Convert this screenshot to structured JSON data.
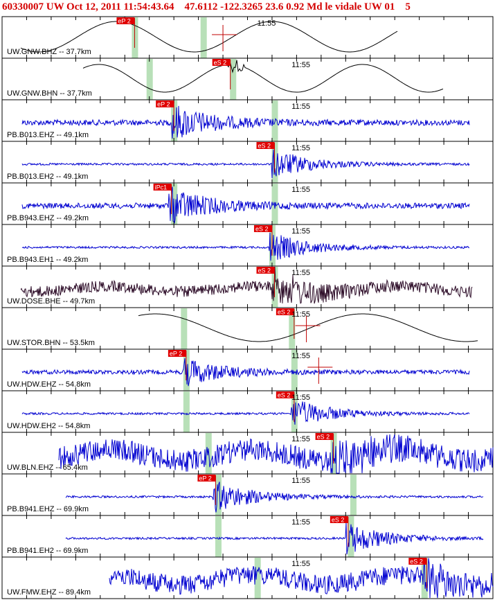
{
  "header": {
    "event_id": "60330007",
    "network": "UW",
    "datetime": "Oct 12, 2011 11:54:43.64",
    "lat": "47.6112",
    "lon": "-122.3265",
    "depth": "23.6",
    "magnitude": "0.92",
    "mag_type": "Md",
    "analyst": "le vidale",
    "source": "UW 01",
    "extra": "5",
    "text": "60330007 UW Oct 12, 2011 11:54:43.64    47.6112 -122.3265 23.6 0.92 Md le vidale UW 01    5"
  },
  "colors": {
    "header_text": "#d40000",
    "pick_box": "#e00000",
    "pick_text": "#ffffff",
    "trace_blue": "#0000d0",
    "trace_black": "#000000",
    "trace_darkpurple": "#2b0a26",
    "window_green": "#b8e0b8",
    "pick_line": "#c00000"
  },
  "time_label": "11:55",
  "traces": [
    {
      "label": "UW.GNW.BHZ -- 37.7km",
      "type": "sine_black",
      "pick": "eP 2",
      "pick_pos": 0.27,
      "green": [
        0.27,
        0.41
      ],
      "label_time": "11:55"
    },
    {
      "label": "UW.GNW.BHN -- 37.7km",
      "type": "sine_black2",
      "pick": "eS 2",
      "pick_pos": 0.465,
      "green": [
        0.3,
        0.47
      ],
      "label_time": "11:55"
    },
    {
      "label": "PB.B013.EHZ -- 49.1km",
      "type": "noise_blue",
      "pick": "eP 2",
      "pick_pos": 0.35,
      "green": [
        0.35,
        0.555
      ],
      "label_time": "11:55"
    },
    {
      "label": "PB.B013.EH2 -- 49.1km",
      "type": "noise_blue_quiet",
      "pick": "eS 2",
      "pick_pos": 0.555,
      "green": [
        0.555
      ],
      "label_time": "11:55"
    },
    {
      "label": "PB.B943.EHZ -- 49.2km",
      "type": "noise_blue",
      "pick": "iPc1",
      "pick_pos": 0.345,
      "green": [
        0.35,
        0.555
      ],
      "label_time": "11:55"
    },
    {
      "label": "PB.B943.EH1 -- 49.2km",
      "type": "noise_blue_quiet",
      "pick": "eS 2",
      "pick_pos": 0.55,
      "green": [
        0.55
      ],
      "label_time": "11:55"
    },
    {
      "label": "UW.DOSE.BHE -- 49.7km",
      "type": "noise_purple",
      "pick": "eS 2",
      "pick_pos": 0.555,
      "green": [
        0.555
      ],
      "label_time": "11:55"
    },
    {
      "label": "UW.STOR.BHN -- 53.5km",
      "type": "sine_black3",
      "pick": "eS 2",
      "pick_pos": 0.595,
      "green": [
        0.37,
        0.59
      ],
      "label_time": "11:55"
    },
    {
      "label": "UW.HDW.EHZ -- 54.8km",
      "type": "noise_blue_hdw",
      "pick": "eP 2",
      "pick_pos": 0.375,
      "green": [
        0.375,
        0.595
      ],
      "label_time": "11:55"
    },
    {
      "label": "UW.HDW.EH2 -- 54.8km",
      "type": "noise_blue_quiet",
      "pick": "eS 2",
      "pick_pos": 0.595,
      "green": [
        0.375,
        0.595
      ],
      "label_time": "11:55"
    },
    {
      "label": "UW.BLN.EHZ -- 65.4km",
      "type": "noise_blue_heavy",
      "pick": "eS 2",
      "pick_pos": 0.675,
      "green": [
        0.42,
        0.675
      ],
      "label_time": "11:55"
    },
    {
      "label": "PB.B941.EHZ -- 69.9km",
      "type": "noise_blue_quiet2",
      "pick": "eP 2",
      "pick_pos": 0.435,
      "green": [
        0.44,
        0.715
      ],
      "label_time": "11:55"
    },
    {
      "label": "PB.B941.EH2 -- 69.9km",
      "type": "noise_blue_quiet2",
      "pick": "eS 2",
      "pick_pos": 0.705,
      "green": [
        0.44,
        0.71
      ],
      "label_time": "11:55"
    },
    {
      "label": "UW.FMW.EHZ -- 89.4km",
      "type": "noise_blue_heavy2",
      "pick": "eS 2",
      "pick_pos": 0.865,
      "green": [
        0.52,
        0.86
      ],
      "label_time": "11:55"
    }
  ]
}
